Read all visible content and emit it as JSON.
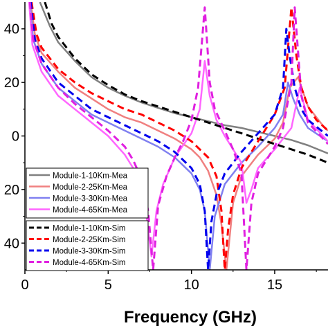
{
  "chart_data": {
    "type": "line",
    "xlabel": "Frequency (GHz)",
    "ylabel": "",
    "xlim": [
      0,
      18.2
    ],
    "ylim": [
      -50,
      50
    ],
    "x_ticks": [
      0,
      5,
      10,
      15
    ],
    "y_ticks": [
      40,
      20,
      0,
      -20,
      -40
    ],
    "y_tick_labels": [
      "40",
      "20",
      "0",
      "20",
      "40"
    ],
    "grid": false,
    "legend_position": "bottom-left",
    "series": [
      {
        "name": "Module-1-10Km-Mea",
        "color": "#808080",
        "dash": "solid",
        "x": [
          0.9,
          1.5,
          2,
          3,
          4,
          5,
          6,
          7,
          8,
          9,
          10,
          11,
          12,
          13,
          14,
          15,
          16,
          17,
          18.2
        ],
        "y": [
          50,
          41,
          35,
          28,
          22,
          18,
          15,
          12.5,
          10.5,
          8.5,
          7,
          5.5,
          4,
          3,
          1.5,
          0,
          -1.5,
          -3.5,
          -6.5
        ]
      },
      {
        "name": "Module-2-25Km-Mea",
        "color": "#f08080",
        "dash": "solid",
        "x": [
          0.35,
          0.6,
          1,
          2,
          3,
          4,
          5,
          6,
          7,
          8,
          9,
          10,
          10.5,
          11,
          11.5,
          11.8,
          12.1,
          12.5,
          13,
          14,
          15,
          15.5,
          15.9,
          16.4,
          17,
          18,
          18.2
        ],
        "y": [
          50,
          38,
          31,
          24,
          18,
          14,
          10,
          7,
          5,
          2,
          -1,
          -5,
          -8,
          -13,
          -22,
          -33,
          -50,
          -25,
          -15,
          -7,
          -1,
          5,
          18,
          22,
          11,
          3,
          2
        ]
      },
      {
        "name": "Module-3-30Km-Mea",
        "color": "#8080f0",
        "dash": "solid",
        "x": [
          0.3,
          0.5,
          1,
          2,
          3,
          4,
          5,
          6,
          7,
          8,
          9,
          10,
          10.5,
          10.8,
          11.1,
          11.4,
          12,
          13,
          14,
          15,
          15.5,
          15.8,
          16.1,
          16.5,
          17,
          18.2
        ],
        "y": [
          50,
          36,
          27,
          18,
          13,
          8,
          5,
          2,
          -1,
          -4,
          -8,
          -14,
          -20,
          -28,
          -50,
          -30,
          -18,
          -10,
          -4,
          3,
          8,
          20,
          14,
          8,
          3,
          -2
        ]
      },
      {
        "name": "Module-4-65Km-Mea",
        "color": "#ff66ff",
        "dash": "solid",
        "x": [
          0.25,
          0.45,
          1,
          2,
          3,
          4,
          5,
          6,
          6.5,
          7,
          7.3,
          7.6,
          7.9,
          8.3,
          9,
          10,
          10.5,
          10.8,
          11.1,
          11.5,
          12,
          13,
          13.3,
          13.6,
          14,
          15,
          16,
          16.5,
          17,
          18.2
        ],
        "y": [
          50,
          34,
          24,
          15,
          10,
          5,
          0,
          -7,
          -12,
          -20,
          -30,
          -45,
          -28,
          -18,
          -8,
          1,
          10,
          28,
          15,
          6,
          0,
          -10,
          -25,
          -20,
          -12,
          -5,
          3,
          18,
          6,
          -2
        ]
      },
      {
        "name": "Module-1-10Km-Sim",
        "color": "#000000",
        "dash": "dashed",
        "x": [
          1.2,
          1.6,
          2,
          3,
          4,
          5,
          6,
          7,
          8,
          9,
          10,
          11,
          12,
          13,
          14,
          15,
          16,
          17,
          18.2
        ],
        "y": [
          50,
          42,
          37,
          29,
          23,
          19,
          15.5,
          13,
          11,
          9,
          7,
          5,
          3,
          1,
          -1,
          -3,
          -5,
          -7,
          -10
        ]
      },
      {
        "name": "Module-2-25Km-Sim",
        "color": "#ff0000",
        "dash": "dashed",
        "x": [
          0.4,
          0.7,
          1,
          2,
          3,
          4,
          5,
          6,
          7,
          8,
          9,
          10,
          11,
          11.5,
          11.8,
          12,
          12.2,
          12.5,
          13,
          14,
          15,
          15.6,
          16,
          16.3,
          16.6,
          17,
          17.5,
          18.2
        ],
        "y": [
          50,
          38,
          33,
          25,
          20,
          16,
          13,
          10,
          8,
          5,
          2,
          -2,
          -8,
          -15,
          -28,
          -50,
          -35,
          -22,
          -12,
          -2,
          8,
          18,
          48,
          30,
          18,
          11,
          6,
          2
        ]
      },
      {
        "name": "Module-3-30Km-Sim",
        "color": "#0000ee",
        "dash": "dashed",
        "x": [
          0.35,
          0.6,
          1,
          2,
          3,
          4,
          5,
          6,
          7,
          8,
          9,
          10,
          10.5,
          10.8,
          11,
          11.2,
          11.5,
          12,
          13,
          14,
          15,
          15.5,
          15.7,
          15.9,
          16.2,
          16.6,
          17,
          18.2
        ],
        "y": [
          50,
          36,
          29,
          20,
          15,
          10,
          7,
          4,
          1,
          -2,
          -6,
          -12,
          -18,
          -28,
          -50,
          -32,
          -22,
          -14,
          -6,
          1,
          8,
          18,
          40,
          30,
          18,
          10,
          6,
          0
        ]
      },
      {
        "name": "Module-4-65Km-Sim",
        "color": "#e020e0",
        "dash": "dashed",
        "x": [
          0.3,
          0.5,
          1,
          2,
          3,
          4,
          5,
          6,
          6.5,
          7,
          7.4,
          7.7,
          8,
          8.5,
          9,
          9.5,
          10,
          10.4,
          10.8,
          11.1,
          11.4,
          12,
          12.5,
          13,
          13.3,
          13.6,
          14,
          15,
          15.5,
          16,
          16.2,
          16.6,
          17,
          18.2
        ],
        "y": [
          50,
          36,
          27,
          18,
          12,
          7,
          2,
          -4,
          -9,
          -16,
          -28,
          -50,
          -26,
          -15,
          -8,
          -2,
          6,
          18,
          48,
          20,
          10,
          2,
          -5,
          -14,
          -50,
          -25,
          -14,
          -4,
          3,
          20,
          48,
          15,
          5,
          -3
        ]
      }
    ]
  }
}
